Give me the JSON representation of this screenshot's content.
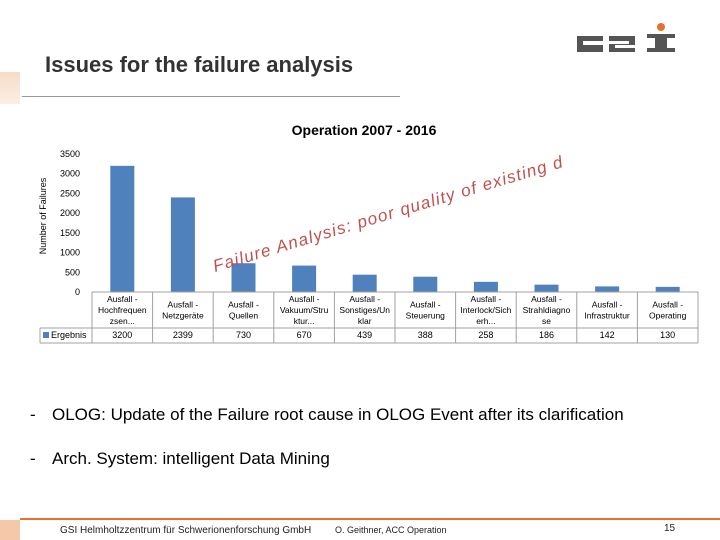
{
  "slide": {
    "title": "Issues for the failure analysis",
    "bullets": [
      {
        "dash": "-",
        "text": "OLOG: Update of the Failure root cause in OLOG Event after its clarification"
      },
      {
        "dash": "-",
        "text": "Arch. System:  intelligent Data Mining"
      }
    ],
    "footer": {
      "org": "GSI Helmholtzzentrum für Schwerionenforschung GmbH",
      "author": "O. Geithner, ACC Operation",
      "page": "15"
    },
    "logo_text": "GSI"
  },
  "colors": {
    "bar": "#4f81bd",
    "overlay_text": "#c0504d",
    "accent": "#e96f2c"
  },
  "chart_data": {
    "type": "bar",
    "title": "Operation 2007 - 2016",
    "ylabel": "Number of Failures",
    "ylim": [
      0,
      3500
    ],
    "yticks": [
      0,
      500,
      1000,
      1500,
      2000,
      2500,
      3000,
      3500
    ],
    "grid": false,
    "legend": "table",
    "categories": [
      [
        "Ausfall -",
        "Hochfrequen",
        "zsen..."
      ],
      [
        "Ausfall -",
        "Netzgeräte"
      ],
      [
        "Ausfall -",
        "Quellen"
      ],
      [
        "Ausfall -",
        "Vakuum/Stru",
        "ktur..."
      ],
      [
        "Ausfall -",
        "Sonstiges/Un",
        "klar"
      ],
      [
        "Ausfall -",
        "Steuerung"
      ],
      [
        "Ausfall -",
        "Interlock/Sich",
        "erh..."
      ],
      [
        "Ausfall -",
        "Strahldiagno",
        "se"
      ],
      [
        "Ausfall -",
        "Infrastruktur"
      ],
      [
        "Ausfall -",
        "Operating"
      ]
    ],
    "series": [
      {
        "name": "Ergebnis",
        "values": [
          3200,
          2399,
          730,
          670,
          439,
          388,
          258,
          186,
          142,
          130
        ]
      }
    ],
    "overlay_text": "Failure Analysis: poor quality of existing data"
  }
}
